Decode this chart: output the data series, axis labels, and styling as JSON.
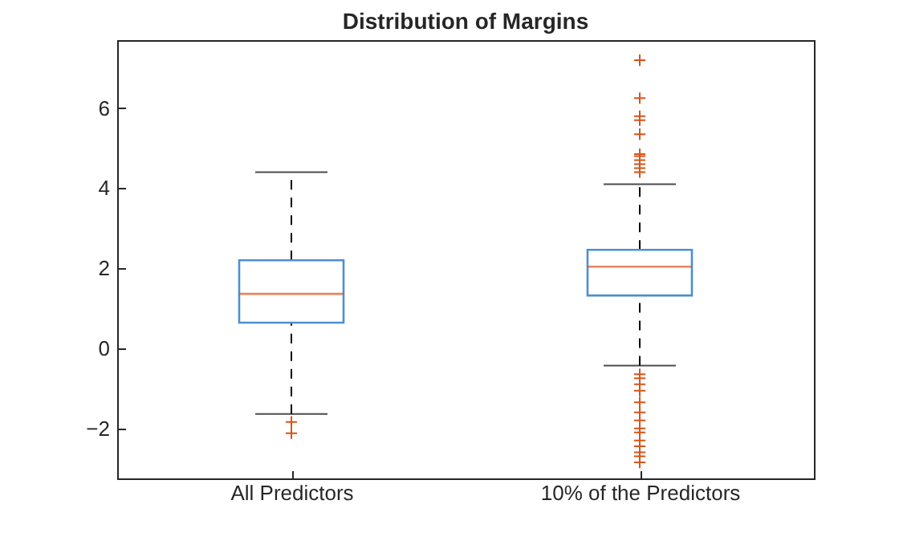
{
  "chart_data": {
    "type": "box",
    "title": "Distribution of Margins",
    "categories": [
      "All Predictors",
      "10% of the Predictors"
    ],
    "ylim": [
      -3.25,
      7.7
    ],
    "yticks": [
      -2,
      0,
      2,
      4,
      6
    ],
    "grid": false,
    "series": [
      {
        "color": "#4d8fd1",
        "boxes": [
          {
            "low": -1.64,
            "q1": 0.64,
            "median": 1.36,
            "q3": 2.2,
            "high": 4.4,
            "outliers": [
              -1.84,
              -2.12
            ]
          },
          {
            "low": -0.43,
            "q1": 1.32,
            "median": 2.04,
            "q3": 2.46,
            "high": 4.1,
            "outliers": [
              7.2,
              6.25,
              5.8,
              5.7,
              5.35,
              4.85,
              4.8,
              4.7,
              4.6,
              4.5,
              4.4,
              -0.65,
              -0.75,
              -0.9,
              -1.06,
              -1.35,
              -1.6,
              -1.8,
              -2.0,
              -2.1,
              -2.3,
              -2.45,
              -2.6,
              -2.7,
              -2.85
            ]
          }
        ]
      }
    ]
  }
}
